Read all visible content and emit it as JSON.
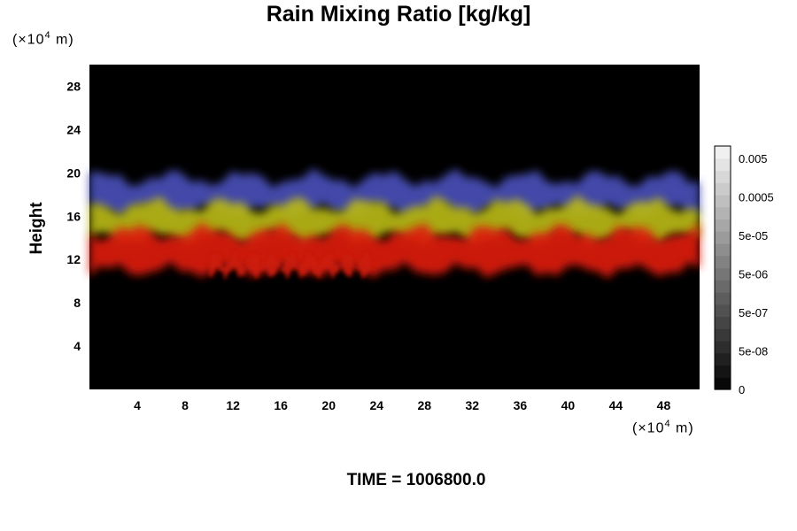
{
  "chart_data": {
    "type": "heatmap",
    "title": "Rain Mixing Ratio [kg/kg]",
    "ylabel": "Height",
    "y_unit": "(×10",
    "x_unit": "(×10",
    "unit_exp": "4",
    "unit_tail": " m)",
    "x_ticks": [
      4,
      8,
      12,
      16,
      20,
      24,
      28,
      32,
      36,
      40,
      44,
      48
    ],
    "y_ticks": [
      4,
      8,
      12,
      16,
      20,
      24,
      28
    ],
    "xlim": [
      0,
      51
    ],
    "ylim": [
      0,
      30
    ],
    "colorbar": {
      "tick_labels": [
        "0.005",
        "0.0005",
        "5e-05",
        "5e-06",
        "5e-07",
        "5e-08",
        "0"
      ],
      "levels": 20
    },
    "bands": [
      {
        "name": "blue",
        "color": "#4a4fb8",
        "y_range": [
          16.5,
          19.5
        ]
      },
      {
        "name": "yellow",
        "color": "#b8b818",
        "y_range": [
          14.0,
          17.0
        ]
      },
      {
        "name": "red",
        "color": "#dd1a10",
        "y_range": [
          11.0,
          14.5
        ]
      },
      {
        "name": "red-lower",
        "color": "#cc1a10",
        "y_range": [
          10.8,
          12.0
        ],
        "x_range": [
          10,
          23.5
        ]
      }
    ]
  },
  "footer": {
    "time": "TIME = 1006800.0"
  }
}
